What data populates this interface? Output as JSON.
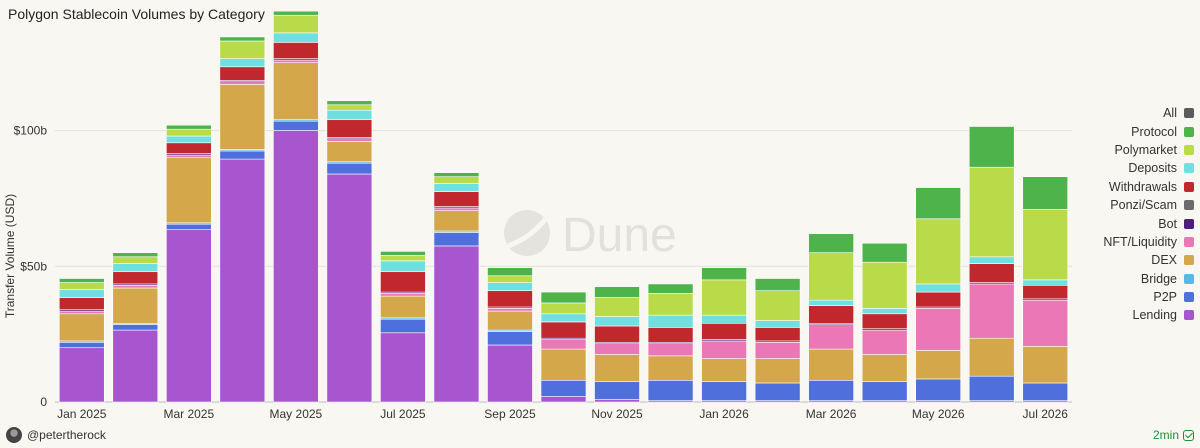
{
  "title": "Polygon Stablecoin Volumes by Category",
  "watermark": "Dune",
  "footer": {
    "user": "@petertherock",
    "refresh": "2min"
  },
  "colors": {
    "Lending": "#a855d0",
    "P2P": "#4f6fdc",
    "Bridge": "#5ab7e8",
    "DEX": "#d4a74a",
    "NFT/Liquidity": "#ec77b6",
    "Bot": "#4b1e7a",
    "Ponzi/Scam": "#6b6b6b",
    "Withdrawals": "#c0282e",
    "Deposits": "#6fe0e0",
    "Polymarket": "#b9db4a",
    "Protocol": "#4fb34c",
    "All": "#5b5b5b"
  },
  "legend": [
    "All",
    "Protocol",
    "Polymarket",
    "Deposits",
    "Withdrawals",
    "Ponzi/Scam",
    "Bot",
    "NFT/Liquidity",
    "DEX",
    "Bridge",
    "P2P",
    "Lending"
  ],
  "chart_data": {
    "type": "bar",
    "stacked": true,
    "ylabel": "Transfer Volume (USD)",
    "yticks": [
      {
        "value": 0,
        "label": "0"
      },
      {
        "value": 50,
        "label": "$50b"
      },
      {
        "value": 100,
        "label": "$100b"
      }
    ],
    "ylim": [
      0,
      140
    ],
    "xtick_labels": [
      "Jan 2025",
      "Mar 2025",
      "May 2025",
      "Jul 2025",
      "Sep 2025",
      "Nov 2025",
      "Jan 2026",
      "Mar 2026",
      "May 2026",
      "Jul 2026"
    ],
    "categories": [
      "Jan 2025",
      "Feb 2025",
      "Mar 2025",
      "Apr 2025",
      "May 2025",
      "Jun 2025",
      "Jul 2025",
      "Aug 2025",
      "Sep 2025",
      "Oct 2025",
      "Nov 2025",
      "Dec 2025",
      "Jan 2026",
      "Feb 2026",
      "Mar 2026",
      "Apr 2026",
      "May 2026",
      "Jun 2026",
      "Jul 2026"
    ],
    "series": [
      {
        "name": "Lending",
        "values": [
          20,
          26.5,
          63.5,
          89.5,
          100,
          84,
          25.5,
          57.5,
          21,
          2,
          1,
          0.5,
          0.5,
          0.5,
          0.5,
          0.5,
          0.5,
          0.5,
          0.5
        ]
      },
      {
        "name": "P2P",
        "values": [
          2,
          2,
          2,
          3,
          3.5,
          4,
          5,
          5,
          5,
          6,
          6.5,
          7.5,
          7,
          6.5,
          7.5,
          7,
          8,
          9,
          6.5
        ]
      },
      {
        "name": "Bridge",
        "values": [
          0.5,
          0.5,
          0.5,
          0.5,
          0.5,
          0.5,
          0.5,
          0.5,
          0.5,
          0,
          0,
          0,
          0,
          0,
          0,
          0,
          0,
          0,
          0
        ]
      },
      {
        "name": "DEX",
        "values": [
          10,
          13,
          24,
          24,
          21,
          7.5,
          8,
          7.5,
          7,
          11.5,
          10,
          9,
          8.5,
          9,
          11.5,
          10,
          10.5,
          14,
          13.5
        ]
      },
      {
        "name": "NFT/Liquidity",
        "values": [
          1,
          1,
          1,
          1,
          1,
          1,
          1,
          1,
          1,
          3.5,
          4,
          4.5,
          6.5,
          6,
          9,
          9,
          15.5,
          20,
          17
        ]
      },
      {
        "name": "Bot",
        "values": [
          0.5,
          0.5,
          0.5,
          0.5,
          0.5,
          0.5,
          0.5,
          0.5,
          0.5,
          0.5,
          0.5,
          0.5,
          0.5,
          0.5,
          0.5,
          0.5,
          0.5,
          0.5,
          0.5
        ]
      },
      {
        "name": "Ponzi/Scam",
        "values": [
          0,
          0,
          0,
          0,
          0,
          0,
          0,
          0,
          0,
          0,
          0,
          0,
          0,
          0,
          0,
          0,
          0,
          0,
          0
        ]
      },
      {
        "name": "Withdrawals",
        "values": [
          4.5,
          4.5,
          4,
          5,
          6,
          6.5,
          7.5,
          5.5,
          6,
          6,
          6,
          5.5,
          6,
          5,
          6.5,
          5.5,
          5.5,
          7,
          5
        ]
      },
      {
        "name": "Deposits",
        "values": [
          3,
          3,
          2.5,
          3,
          3.5,
          3.5,
          4,
          3,
          3,
          3,
          3.5,
          4.5,
          3,
          2.5,
          2,
          2,
          3,
          2.5,
          2
        ]
      },
      {
        "name": "Polymarket",
        "values": [
          2.5,
          2.5,
          2.5,
          6.5,
          6.5,
          2,
          2,
          2.5,
          2.5,
          4,
          7,
          8,
          13,
          11,
          17.5,
          17,
          24,
          33,
          26
        ]
      },
      {
        "name": "Protocol",
        "values": [
          1.5,
          1.5,
          1.5,
          1.5,
          1.5,
          1.5,
          1.5,
          1.5,
          3,
          4,
          4,
          3.5,
          4.5,
          4.5,
          7,
          7,
          11.5,
          15,
          12
        ]
      }
    ]
  }
}
